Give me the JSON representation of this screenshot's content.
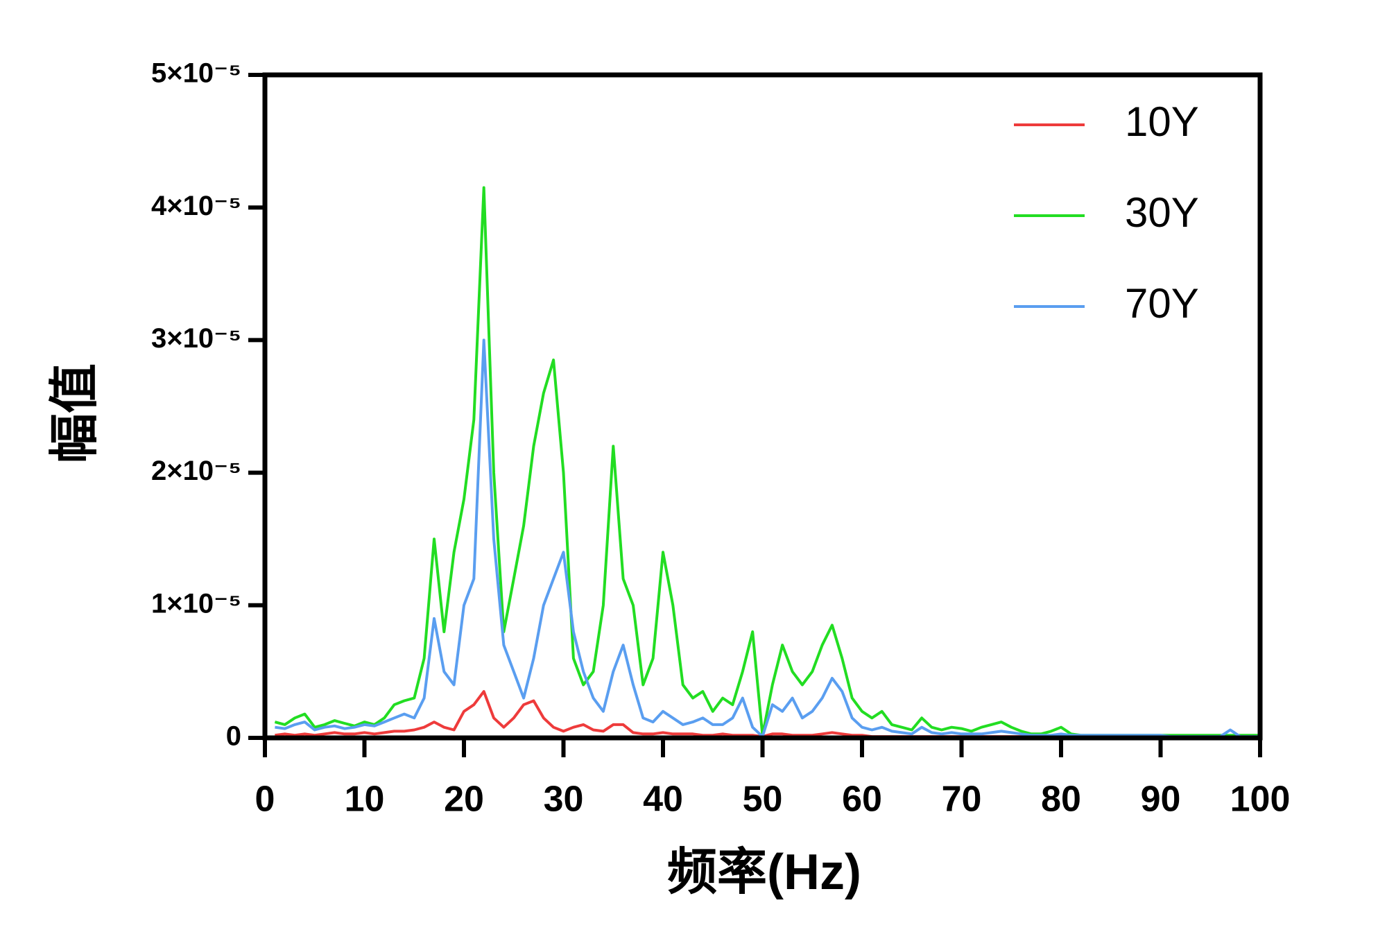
{
  "chart_data": {
    "type": "line",
    "xlabel": "频率(Hz)",
    "ylabel": "幅值",
    "x": [
      1,
      2,
      3,
      4,
      5,
      6,
      7,
      8,
      9,
      10,
      11,
      12,
      13,
      14,
      15,
      16,
      17,
      18,
      19,
      20,
      21,
      22,
      23,
      24,
      25,
      26,
      27,
      28,
      29,
      30,
      31,
      32,
      33,
      34,
      35,
      36,
      37,
      38,
      39,
      40,
      41,
      42,
      43,
      44,
      45,
      46,
      47,
      48,
      49,
      50,
      51,
      52,
      53,
      54,
      55,
      56,
      57,
      58,
      59,
      60,
      61,
      62,
      63,
      64,
      65,
      66,
      67,
      68,
      69,
      70,
      71,
      72,
      73,
      74,
      75,
      76,
      77,
      78,
      79,
      80,
      81,
      82,
      83,
      84,
      85,
      86,
      87,
      88,
      89,
      90,
      91,
      92,
      93,
      94,
      95,
      96,
      97,
      98,
      99,
      100
    ],
    "series": [
      {
        "name": "10Y",
        "color": "#ee3b3b",
        "values": [
          2e-07,
          3e-07,
          2e-07,
          3e-07,
          2e-07,
          3e-07,
          4e-07,
          3e-07,
          3e-07,
          4e-07,
          3e-07,
          4e-07,
          5e-07,
          5e-07,
          6e-07,
          8e-07,
          1.2e-06,
          8e-07,
          6e-07,
          2e-06,
          2.5e-06,
          3.5e-06,
          1.5e-06,
          8e-07,
          1.5e-06,
          2.5e-06,
          2.8e-06,
          1.5e-06,
          8e-07,
          5e-07,
          8e-07,
          1e-06,
          6e-07,
          5e-07,
          1e-06,
          1e-06,
          4e-07,
          3e-07,
          3e-07,
          4e-07,
          3e-07,
          3e-07,
          3e-07,
          2e-07,
          2e-07,
          3e-07,
          2e-07,
          2e-07,
          2e-07,
          1e-07,
          3e-07,
          3e-07,
          2e-07,
          2e-07,
          2e-07,
          3e-07,
          4e-07,
          3e-07,
          2e-07,
          2e-07,
          1e-07,
          1e-07,
          1e-07,
          1e-07,
          1e-07,
          1e-07,
          1e-07,
          1e-07,
          1e-07,
          1e-07,
          1e-07,
          1e-07,
          1e-07,
          1e-07,
          1e-07,
          1e-07,
          1e-07,
          1e-07,
          1e-07,
          1e-07,
          1e-07,
          1e-07,
          1e-07,
          1e-07,
          1e-07,
          1e-07,
          1e-07,
          1e-07,
          1e-07,
          1e-07,
          1e-07,
          1e-07,
          1e-07,
          1e-07,
          1e-07,
          1e-07,
          1e-07,
          1e-07,
          1e-07,
          1e-07
        ]
      },
      {
        "name": "30Y",
        "color": "#22dd22",
        "values": [
          1.2e-06,
          1e-06,
          1.5e-06,
          1.8e-06,
          8e-07,
          1e-06,
          1.3e-06,
          1.1e-06,
          9e-07,
          1.2e-06,
          1e-06,
          1.5e-06,
          2.5e-06,
          2.8e-06,
          3e-06,
          6e-06,
          1.5e-05,
          8e-06,
          1.4e-05,
          1.8e-05,
          2.4e-05,
          4.15e-05,
          2e-05,
          8e-06,
          1.2e-05,
          1.6e-05,
          2.2e-05,
          2.6e-05,
          2.85e-05,
          2e-05,
          6e-06,
          4e-06,
          5e-06,
          1e-05,
          2.2e-05,
          1.2e-05,
          1e-05,
          4e-06,
          6e-06,
          1.4e-05,
          1e-05,
          4e-06,
          3e-06,
          3.5e-06,
          2e-06,
          3e-06,
          2.5e-06,
          5e-06,
          8e-06,
          2e-07,
          4e-06,
          7e-06,
          5e-06,
          4e-06,
          5e-06,
          7e-06,
          8.5e-06,
          6e-06,
          3e-06,
          2e-06,
          1.5e-06,
          2e-06,
          1e-06,
          8e-07,
          6e-07,
          1.5e-06,
          8e-07,
          6e-07,
          8e-07,
          7e-07,
          5e-07,
          8e-07,
          1e-06,
          1.2e-06,
          8e-07,
          5e-07,
          3e-07,
          3e-07,
          5e-07,
          8e-07,
          3e-07,
          2e-07,
          2e-07,
          2e-07,
          2e-07,
          2e-07,
          2e-07,
          2e-07,
          2e-07,
          2e-07,
          2e-07,
          2e-07,
          2e-07,
          2e-07,
          2e-07,
          2e-07,
          2e-07,
          2e-07,
          2e-07,
          2e-07
        ]
      },
      {
        "name": "70Y",
        "color": "#5a9ef0",
        "values": [
          8e-07,
          7e-07,
          1e-06,
          1.2e-06,
          6e-07,
          8e-07,
          9e-07,
          7e-07,
          8e-07,
          1e-06,
          9e-07,
          1.2e-06,
          1.5e-06,
          1.8e-06,
          1.5e-06,
          3e-06,
          9e-06,
          5e-06,
          4e-06,
          1e-05,
          1.2e-05,
          3e-05,
          1.5e-05,
          7e-06,
          5e-06,
          3e-06,
          6e-06,
          1e-05,
          1.2e-05,
          1.4e-05,
          8e-06,
          5e-06,
          3e-06,
          2e-06,
          5e-06,
          7e-06,
          4e-06,
          1.5e-06,
          1.2e-06,
          2e-06,
          1.5e-06,
          1e-06,
          1.2e-06,
          1.5e-06,
          1e-06,
          1e-06,
          1.5e-06,
          3e-06,
          8e-07,
          1e-07,
          2.5e-06,
          2e-06,
          3e-06,
          1.5e-06,
          2e-06,
          3e-06,
          4.5e-06,
          3.5e-06,
          1.5e-06,
          8e-07,
          6e-07,
          8e-07,
          5e-07,
          4e-07,
          3e-07,
          8e-07,
          4e-07,
          3e-07,
          4e-07,
          3e-07,
          3e-07,
          3e-07,
          4e-07,
          5e-07,
          4e-07,
          3e-07,
          2e-07,
          2e-07,
          2e-07,
          3e-07,
          2e-07,
          2e-07,
          2e-07,
          2e-07,
          2e-07,
          2e-07,
          2e-07,
          2e-07,
          2e-07,
          2e-07,
          1e-07,
          1e-07,
          1e-07,
          1e-07,
          1e-07,
          1e-07,
          6e-07,
          1e-07,
          1e-07,
          1e-07
        ]
      }
    ],
    "xlim": [
      0,
      100
    ],
    "xticks": [
      0,
      10,
      20,
      30,
      40,
      50,
      60,
      70,
      80,
      90,
      100
    ],
    "ylim": [
      0,
      5e-05
    ],
    "yticks": [
      0,
      {
        "value": 1e-05,
        "label": "1×10⁻⁵"
      },
      {
        "value": 2e-05,
        "label": "2×10⁻⁵"
      },
      {
        "value": 3e-05,
        "label": "3×10⁻⁵"
      },
      {
        "value": 4e-05,
        "label": "4×10⁻⁵"
      },
      {
        "value": 5e-05,
        "label": "5×10⁻⁵"
      }
    ],
    "legend": "upper right",
    "grid": false
  }
}
